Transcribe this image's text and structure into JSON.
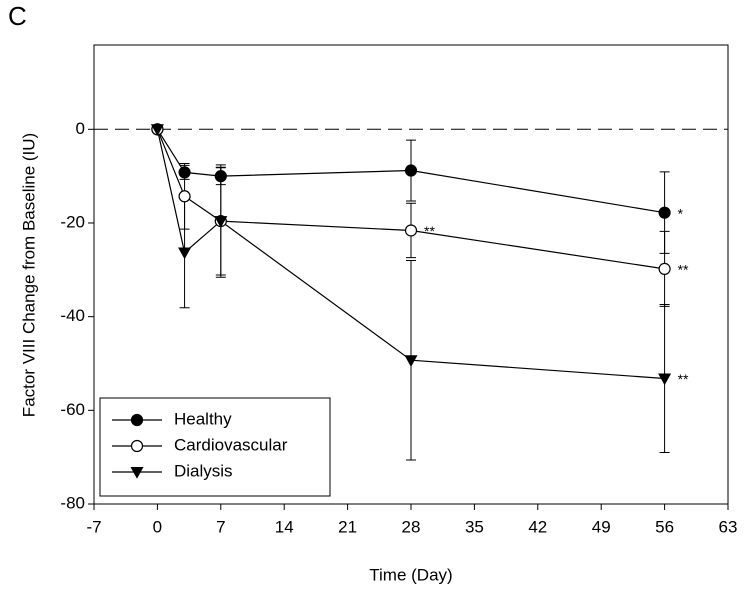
{
  "chart_data": {
    "type": "line",
    "panel_label": "C",
    "xlabel": "Time (Day)",
    "ylabel": "Factor VIII Change from Baseline (IU)",
    "x": [
      0,
      3,
      7,
      28,
      56
    ],
    "xlim": [
      -7,
      63
    ],
    "xticks": [
      -7,
      0,
      7,
      14,
      21,
      28,
      35,
      42,
      49,
      56,
      63
    ],
    "ylim": [
      -80,
      18
    ],
    "yticks": [
      -80,
      -60,
      -40,
      -20,
      0
    ],
    "reference_line": 0,
    "legend": "lower left",
    "series": [
      {
        "name": "Healthy",
        "color": "#000000",
        "marker": "circle",
        "fill": "#000000",
        "values": [
          0,
          -9.2,
          -10,
          -8.8,
          -17.8
        ],
        "errors": [
          0,
          1.5,
          1.8,
          6.5,
          8.7
        ]
      },
      {
        "name": "Cardiovascular",
        "color": "#000000",
        "marker": "circle",
        "fill": "#ffffff",
        "values": [
          0,
          -14.3,
          -19.6,
          -21.6,
          -29.8
        ],
        "errors": [
          0,
          7,
          11.5,
          5.8,
          8
        ]
      },
      {
        "name": "Dialysis",
        "color": "#000000",
        "marker": "triangle-down",
        "fill": "#000000",
        "values": [
          0,
          -26.3,
          -19.6,
          -49.3,
          -53.2
        ],
        "errors": [
          0,
          11.8,
          12,
          21.3,
          15.8
        ]
      }
    ],
    "annotations": [
      "*",
      "**",
      "**",
      "**"
    ]
  }
}
